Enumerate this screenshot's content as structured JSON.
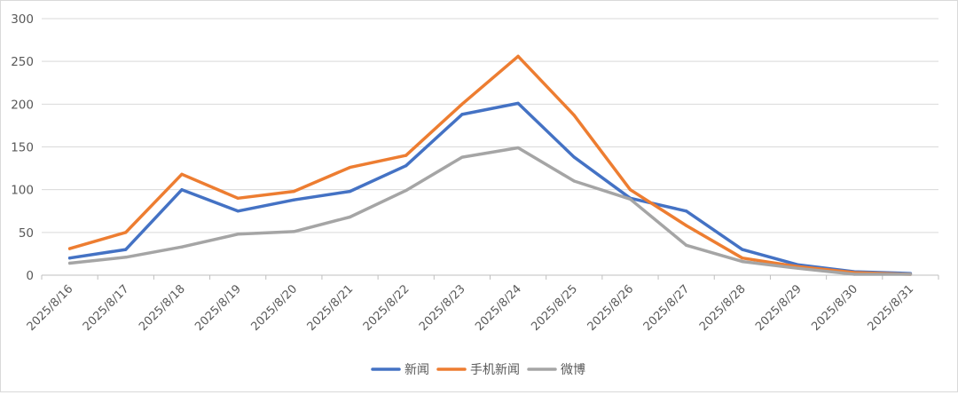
{
  "chart_data": {
    "type": "line",
    "categories": [
      "2025/8/16",
      "2025/8/17",
      "2025/8/18",
      "2025/8/19",
      "2025/8/20",
      "2025/8/21",
      "2025/8/22",
      "2025/8/23",
      "2025/8/24",
      "2025/8/25",
      "2025/8/26",
      "2025/8/27",
      "2025/8/28",
      "2025/8/29",
      "2025/8/30",
      "2025/8/31"
    ],
    "series": [
      {
        "name": "新闻",
        "color": "#4472C4",
        "values": [
          20,
          30,
          100,
          75,
          88,
          98,
          128,
          188,
          201,
          138,
          90,
          75,
          30,
          12,
          4,
          2
        ]
      },
      {
        "name": "手机新闻",
        "color": "#ED7D31",
        "values": [
          31,
          50,
          118,
          90,
          98,
          126,
          140,
          200,
          256,
          187,
          100,
          58,
          20,
          10,
          3,
          1
        ]
      },
      {
        "name": "微博",
        "color": "#A5A5A5",
        "values": [
          14,
          21,
          33,
          48,
          51,
          68,
          99,
          138,
          149,
          110,
          89,
          35,
          16,
          8,
          1,
          1
        ]
      }
    ],
    "ylim": [
      0,
      300
    ],
    "yticks": [
      "0",
      "50",
      "100",
      "150",
      "200",
      "250",
      "300"
    ],
    "grid": true,
    "legend": "bottom-center",
    "title": "",
    "xlabel": "",
    "ylabel": ""
  }
}
